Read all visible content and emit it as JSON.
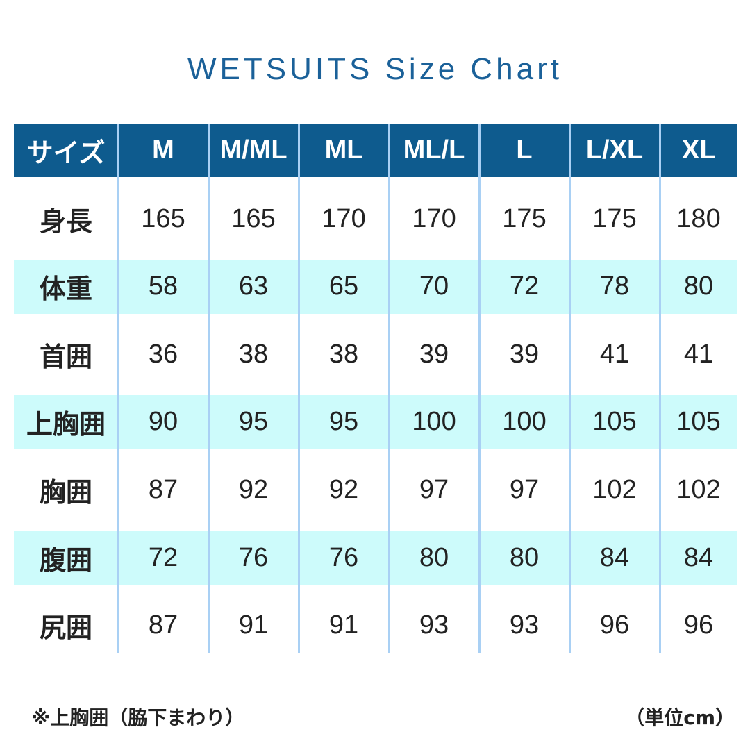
{
  "title": "WETSUITS Size Chart",
  "table": {
    "header": [
      "サイズ",
      "M",
      "M/ML",
      "ML",
      "ML/L",
      "L",
      "L/XL",
      "XL"
    ],
    "rows": [
      [
        "身長",
        165,
        165,
        170,
        170,
        175,
        175,
        180
      ],
      [
        "体重",
        58,
        63,
        65,
        70,
        72,
        78,
        80
      ],
      [
        "首囲",
        36,
        38,
        38,
        39,
        39,
        41,
        41
      ],
      [
        "上胸囲",
        90,
        95,
        95,
        100,
        100,
        105,
        105
      ],
      [
        "胸囲",
        87,
        92,
        92,
        97,
        97,
        102,
        102
      ],
      [
        "腹囲",
        72,
        76,
        76,
        80,
        80,
        84,
        84
      ],
      [
        "尻囲",
        87,
        91,
        91,
        93,
        93,
        96,
        96
      ]
    ]
  },
  "notes": {
    "left": "※上胸囲（脇下まわり）",
    "right": "（単位cm）"
  }
}
